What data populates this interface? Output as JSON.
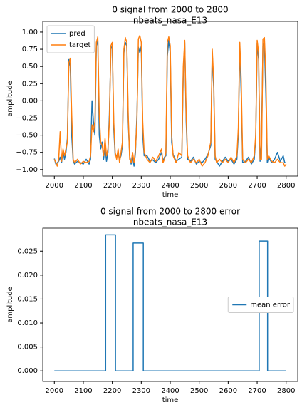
{
  "chart_data": [
    {
      "type": "line",
      "title": "0 signal from 2000 to 2800",
      "subtitle": "nbeats_nasa_E13",
      "xlabel": "time",
      "ylabel": "amplitude",
      "x": [
        2000,
        2005,
        2010,
        2015,
        2020,
        2025,
        2030,
        2035,
        2040,
        2045,
        2050,
        2055,
        2060,
        2065,
        2070,
        2080,
        2090,
        2100,
        2110,
        2120,
        2125,
        2130,
        2135,
        2140,
        2145,
        2150,
        2155,
        2160,
        2165,
        2170,
        2175,
        2180,
        2185,
        2190,
        2195,
        2200,
        2205,
        2210,
        2215,
        2220,
        2225,
        2230,
        2235,
        2240,
        2245,
        2250,
        2255,
        2260,
        2265,
        2270,
        2275,
        2280,
        2285,
        2290,
        2295,
        2300,
        2305,
        2310,
        2320,
        2330,
        2340,
        2350,
        2360,
        2370,
        2375,
        2380,
        2385,
        2390,
        2395,
        2400,
        2405,
        2410,
        2420,
        2430,
        2440,
        2445,
        2450,
        2455,
        2460,
        2470,
        2480,
        2490,
        2500,
        2510,
        2520,
        2530,
        2540,
        2545,
        2550,
        2555,
        2560,
        2570,
        2580,
        2590,
        2600,
        2610,
        2620,
        2630,
        2635,
        2640,
        2645,
        2650,
        2660,
        2670,
        2680,
        2690,
        2695,
        2700,
        2705,
        2710,
        2715,
        2720,
        2725,
        2730,
        2735,
        2740,
        2750,
        2760,
        2770,
        2780,
        2790,
        2795,
        2800
      ],
      "series": [
        {
          "name": "pred",
          "color": "#1f77b4",
          "values": [
            -0.84,
            -0.92,
            -0.9,
            -0.88,
            -0.82,
            -0.9,
            -0.72,
            -0.85,
            -0.75,
            -0.55,
            0.6,
            0.5,
            -0.5,
            -0.88,
            -0.92,
            -0.88,
            -0.9,
            -0.92,
            -0.85,
            -0.92,
            -0.85,
            0,
            -0.3,
            -0.5,
            0.8,
            0.88,
            -0.5,
            -0.7,
            -0.6,
            -0.85,
            -0.65,
            -0.88,
            -0.75,
            -0.2,
            0.75,
            0.8,
            -0.4,
            -0.8,
            -0.8,
            -0.75,
            -0.85,
            -0.8,
            -0.65,
            0.7,
            0.85,
            0.8,
            -0.3,
            -0.8,
            -0.92,
            -0.82,
            -0.95,
            -0.75,
            -0.2,
            0.78,
            0.7,
            0.8,
            -0.5,
            -0.8,
            -0.8,
            -0.88,
            -0.86,
            -0.9,
            -0.85,
            -0.75,
            -0.88,
            -0.82,
            -0.8,
            0.65,
            0.88,
            0.7,
            -0.6,
            -0.78,
            -0.88,
            -0.85,
            -0.82,
            0.4,
            0.85,
            -0.3,
            -0.85,
            -0.88,
            -0.82,
            -0.92,
            -0.88,
            -0.9,
            -0.85,
            -0.78,
            -0.65,
            0.7,
            0.2,
            -0.85,
            -0.88,
            -0.95,
            -0.88,
            -0.82,
            -0.88,
            -0.85,
            -0.92,
            -0.85,
            -0.5,
            0.8,
            0.1,
            -0.9,
            -0.88,
            -0.82,
            -0.92,
            -0.85,
            -0.55,
            0.83,
            0.6,
            -0.88,
            -0.6,
            0.8,
            0.85,
            0.1,
            -0.9,
            -0.82,
            -0.9,
            -0.85,
            -0.75,
            -0.88,
            -0.8,
            -0.9,
            -0.9
          ]
        },
        {
          "name": "target",
          "color": "#ff7f0e",
          "values": [
            -0.85,
            -0.9,
            -0.95,
            -0.85,
            -0.45,
            -0.88,
            -0.7,
            -0.8,
            -0.7,
            -0.6,
            0.55,
            0.62,
            -0.2,
            -0.85,
            -0.9,
            -0.85,
            -0.92,
            -0.88,
            -0.9,
            -0.88,
            -0.8,
            -0.35,
            -0.45,
            -0.3,
            0.85,
            0.93,
            -0.2,
            -0.6,
            -0.65,
            -0.8,
            -0.55,
            -0.8,
            -0.7,
            -0.3,
            0.8,
            0.85,
            -0.3,
            -0.75,
            -0.85,
            -0.7,
            -0.9,
            -0.75,
            -0.6,
            0.75,
            0.92,
            0.85,
            -0.2,
            -0.85,
            -0.9,
            -0.75,
            -0.9,
            -0.7,
            -0.3,
            0.9,
            0.95,
            0.85,
            -0.3,
            -0.75,
            -0.85,
            -0.9,
            -0.82,
            -0.88,
            -0.8,
            -0.7,
            -0.9,
            -0.85,
            -0.75,
            0.85,
            0.93,
            0.8,
            -0.5,
            -0.8,
            -0.9,
            -0.75,
            -0.8,
            0.5,
            0.88,
            -0.2,
            -0.8,
            -0.9,
            -0.85,
            -0.9,
            -0.85,
            -0.95,
            -0.9,
            -0.8,
            -0.6,
            0.75,
            0.3,
            -0.8,
            -0.9,
            -0.85,
            -0.9,
            -0.85,
            -0.9,
            -0.82,
            -0.9,
            -0.8,
            -0.4,
            0.85,
            0.3,
            -0.85,
            -0.9,
            -0.85,
            -0.9,
            -0.8,
            -0.5,
            0.88,
            0.7,
            -0.85,
            -0.85,
            0.9,
            0.92,
            0.4,
            -0.85,
            -0.8,
            -0.88,
            -0.9,
            -0.85,
            -0.9,
            -0.9,
            -0.95,
            -0.92
          ]
        }
      ],
      "xlim": [
        1960,
        2840
      ],
      "xticks": [
        2000,
        2100,
        2200,
        2300,
        2400,
        2500,
        2600,
        2700,
        2800
      ],
      "ylim": [
        -1.095,
        1.155
      ],
      "yticks": [
        {
          "value": -1,
          "label": "−1.00"
        },
        {
          "value": -0.75,
          "label": "−0.75"
        },
        {
          "value": -0.5,
          "label": "−0.50"
        },
        {
          "value": -0.25,
          "label": "−0.25"
        },
        {
          "value": 0,
          "label": "0.00"
        },
        {
          "value": 0.25,
          "label": "0.25"
        },
        {
          "value": 0.5,
          "label": "0.50"
        },
        {
          "value": 0.75,
          "label": "0.75"
        },
        {
          "value": 1,
          "label": "1.00"
        }
      ],
      "grid": false,
      "legend": "upper left"
    },
    {
      "type": "line",
      "title": "0 signal from 2000 to 2800  error",
      "subtitle": "nbeats_nasa_E13",
      "xlabel": "time",
      "ylabel": "amplitude",
      "x": [
        2000,
        2177,
        2177,
        2211,
        2211,
        2272,
        2272,
        2307,
        2307,
        2707,
        2707,
        2736,
        2736,
        2800
      ],
      "series": [
        {
          "name": "mean error",
          "color": "#1f77b4",
          "values": [
            0,
            0,
            0.0284,
            0.0284,
            0,
            0,
            0.0267,
            0.0267,
            0,
            0,
            0.0271,
            0.0271,
            0,
            0
          ]
        }
      ],
      "xlim": [
        1960,
        2840
      ],
      "xticks": [
        2000,
        2100,
        2200,
        2300,
        2400,
        2500,
        2600,
        2700,
        2800
      ],
      "ylim": [
        -0.0022,
        0.0298
      ],
      "yticks": [
        {
          "value": 0,
          "label": "0.000"
        },
        {
          "value": 0.005,
          "label": "0.005"
        },
        {
          "value": 0.01,
          "label": "0.010"
        },
        {
          "value": 0.015,
          "label": "0.015"
        },
        {
          "value": 0.02,
          "label": "0.020"
        },
        {
          "value": 0.025,
          "label": "0.025"
        }
      ],
      "grid": false,
      "legend": "center right"
    }
  ]
}
